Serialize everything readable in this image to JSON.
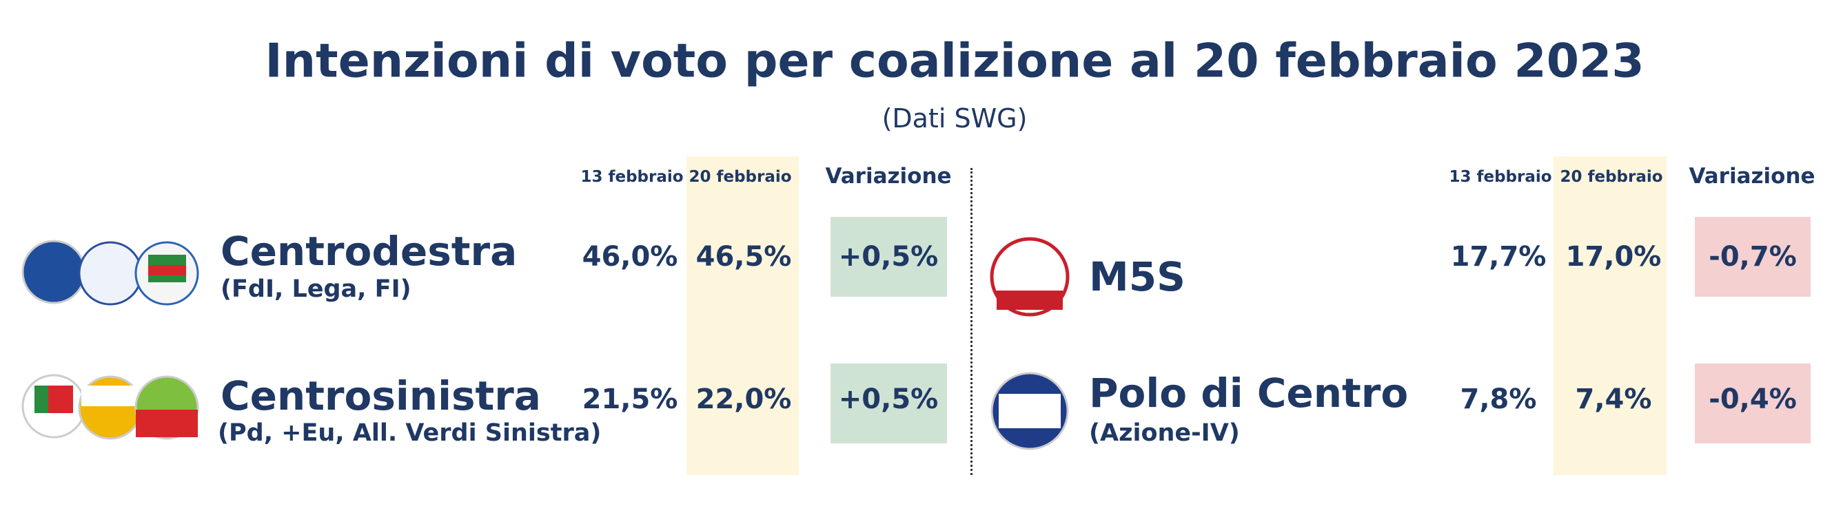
{
  "header": {
    "title": "Intenzioni di voto per coalizione al 20 febbraio 2023",
    "subtitle": "(Dati SWG)"
  },
  "left": {
    "columns": [
      "13 febbraio",
      "20 febbraio",
      "Variazione"
    ],
    "rows": [
      {
        "name": "Centrodestra",
        "detail": "(FdI, Lega, FI)",
        "values": [
          "46,0%",
          "46,5%",
          "+0,5%"
        ]
      },
      {
        "name": "Centrosinistra",
        "detail": "(Pd, +Eu, All. Verdi Sinistra)",
        "values": [
          "21,5%",
          "22,0%",
          "+0,5%"
        ]
      }
    ]
  },
  "right": {
    "columns": [
      "13 febbraio",
      "20 febbraio",
      "Variazione"
    ],
    "rows": [
      {
        "name": "M5S",
        "values": [
          "17,7%",
          "17,0%",
          "-0,7%"
        ]
      },
      {
        "name": "Polo di Centro",
        "detail": "(Azione-IV)",
        "values": [
          "7,8%",
          "7,4%",
          "-0,4%"
        ]
      }
    ]
  }
}
